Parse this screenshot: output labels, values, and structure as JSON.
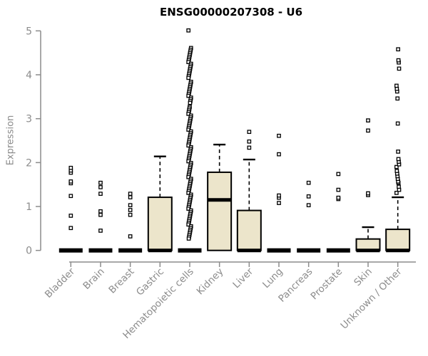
{
  "chart_data": {
    "type": "boxplot",
    "title": "ENSG00000207308 - U6",
    "ylabel": "Expression",
    "xlabel": "",
    "ylim": [
      0,
      5
    ],
    "yticks": [
      0,
      1,
      2,
      3,
      4,
      5
    ],
    "grid": false,
    "legend": "none",
    "categories": [
      "Bladder",
      "Brain",
      "Breast",
      "Gastric",
      "Hematopoietic cells",
      "Kidney",
      "Liver",
      "Lung",
      "Pancreas",
      "Prostate",
      "Skin",
      "Unknown / Other"
    ],
    "boxes": [
      {
        "category": "Bladder",
        "q1": 0,
        "median": 0,
        "q3": 0,
        "whisker_low": 0,
        "whisker_high": 0,
        "outliers": [
          0.51,
          0.79,
          1.24,
          1.53,
          1.57,
          1.77,
          1.82,
          1.88
        ]
      },
      {
        "category": "Brain",
        "q1": 0,
        "median": 0,
        "q3": 0,
        "whisker_low": 0,
        "whisker_high": 0,
        "outliers": [
          0.45,
          0.81,
          0.89,
          1.29,
          1.44,
          1.54
        ]
      },
      {
        "category": "Breast",
        "q1": 0,
        "median": 0,
        "q3": 0,
        "whisker_low": 0,
        "whisker_high": 0,
        "outliers": [
          0.32,
          0.81,
          0.92,
          1.03,
          1.21,
          1.29
        ]
      },
      {
        "category": "Gastric",
        "q1": 0,
        "median": 0,
        "q3": 1.21,
        "whisker_low": 0,
        "whisker_high": 2.14,
        "outliers": []
      },
      {
        "category": "Hematopoietic cells",
        "q1": 0,
        "median": 0,
        "q3": 0,
        "whisker_low": 0,
        "whisker_high": 0,
        "outliers": [
          5.01,
          4.61,
          4.57,
          4.53,
          4.49,
          4.45,
          4.41,
          4.37,
          4.33,
          4.29,
          4.25,
          4.21,
          4.17,
          4.13,
          4.09,
          4.05,
          4.01,
          3.97,
          3.93,
          3.84,
          3.8,
          3.76,
          3.72,
          3.68,
          3.64,
          3.6,
          3.56,
          3.52,
          3.48,
          3.44,
          3.4,
          3.36,
          3.27,
          3.23,
          3.19,
          3.15,
          3.11,
          3.07,
          3.03,
          2.99,
          2.95,
          2.91,
          2.87,
          2.83,
          2.79,
          2.75,
          2.71,
          2.67,
          2.63,
          2.59,
          2.55,
          2.51,
          2.47,
          2.43,
          2.39,
          2.35,
          2.31,
          2.27,
          2.23,
          2.19,
          2.15,
          2.11,
          2.07,
          2.03,
          1.99,
          1.95,
          1.91,
          1.87,
          1.83,
          1.79,
          1.75,
          1.71,
          1.67,
          1.63,
          1.59,
          1.55,
          1.51,
          1.47,
          1.43,
          1.39,
          1.35,
          1.31,
          1.27,
          1.23,
          1.19,
          1.15,
          1.11,
          1.07,
          1.03,
          0.99,
          0.95,
          0.91,
          0.87,
          0.83,
          0.79,
          0.75,
          0.71,
          0.67,
          0.63,
          0.59,
          0.55,
          0.51,
          0.47,
          0.43,
          0.39,
          0.35,
          0.31,
          0.27
        ]
      },
      {
        "category": "Kidney",
        "q1": 0,
        "median": 1.15,
        "q3": 1.78,
        "whisker_low": 0,
        "whisker_high": 2.41,
        "outliers": []
      },
      {
        "category": "Liver",
        "q1": 0,
        "median": 0,
        "q3": 0.91,
        "whisker_low": 0,
        "whisker_high": 2.07,
        "outliers": [
          2.34,
          2.48,
          2.7
        ]
      },
      {
        "category": "Lung",
        "q1": 0,
        "median": 0,
        "q3": 0,
        "whisker_low": 0,
        "whisker_high": 0,
        "outliers": [
          1.08,
          1.2,
          1.25,
          2.19,
          2.61
        ]
      },
      {
        "category": "Pancreas",
        "q1": 0,
        "median": 0,
        "q3": 0,
        "whisker_low": 0,
        "whisker_high": 0,
        "outliers": [
          1.03,
          1.23,
          1.54
        ]
      },
      {
        "category": "Prostate",
        "q1": 0,
        "median": 0,
        "q3": 0,
        "whisker_low": 0,
        "whisker_high": 0,
        "outliers": [
          1.17,
          1.2,
          1.38,
          1.74
        ]
      },
      {
        "category": "Skin",
        "q1": 0,
        "median": 0,
        "q3": 0.26,
        "whisker_low": 0,
        "whisker_high": 0.53,
        "outliers": [
          1.26,
          1.3,
          2.73,
          2.96
        ]
      },
      {
        "category": "Unknown / Other",
        "q1": 0,
        "median": 0,
        "q3": 0.48,
        "whisker_low": 0,
        "whisker_high": 1.21,
        "outliers": [
          1.31,
          1.38,
          1.45,
          1.54,
          1.57,
          1.63,
          1.69,
          1.75,
          1.81,
          1.9,
          1.96,
          2.02,
          2.08,
          2.25,
          2.89,
          3.46,
          3.62,
          3.68,
          3.75,
          4.14,
          4.28,
          4.33,
          4.58
        ]
      }
    ],
    "colors": {
      "box_fill": "#ECE5CB",
      "box_stroke": "#000000",
      "median": "#000000",
      "outlier_stroke": "#000000",
      "outlier_fill": "#ffffff",
      "axis": "#8c8c8c",
      "tick_label": "#8c8c8c",
      "title": "#000000",
      "background": "#ffffff"
    }
  }
}
